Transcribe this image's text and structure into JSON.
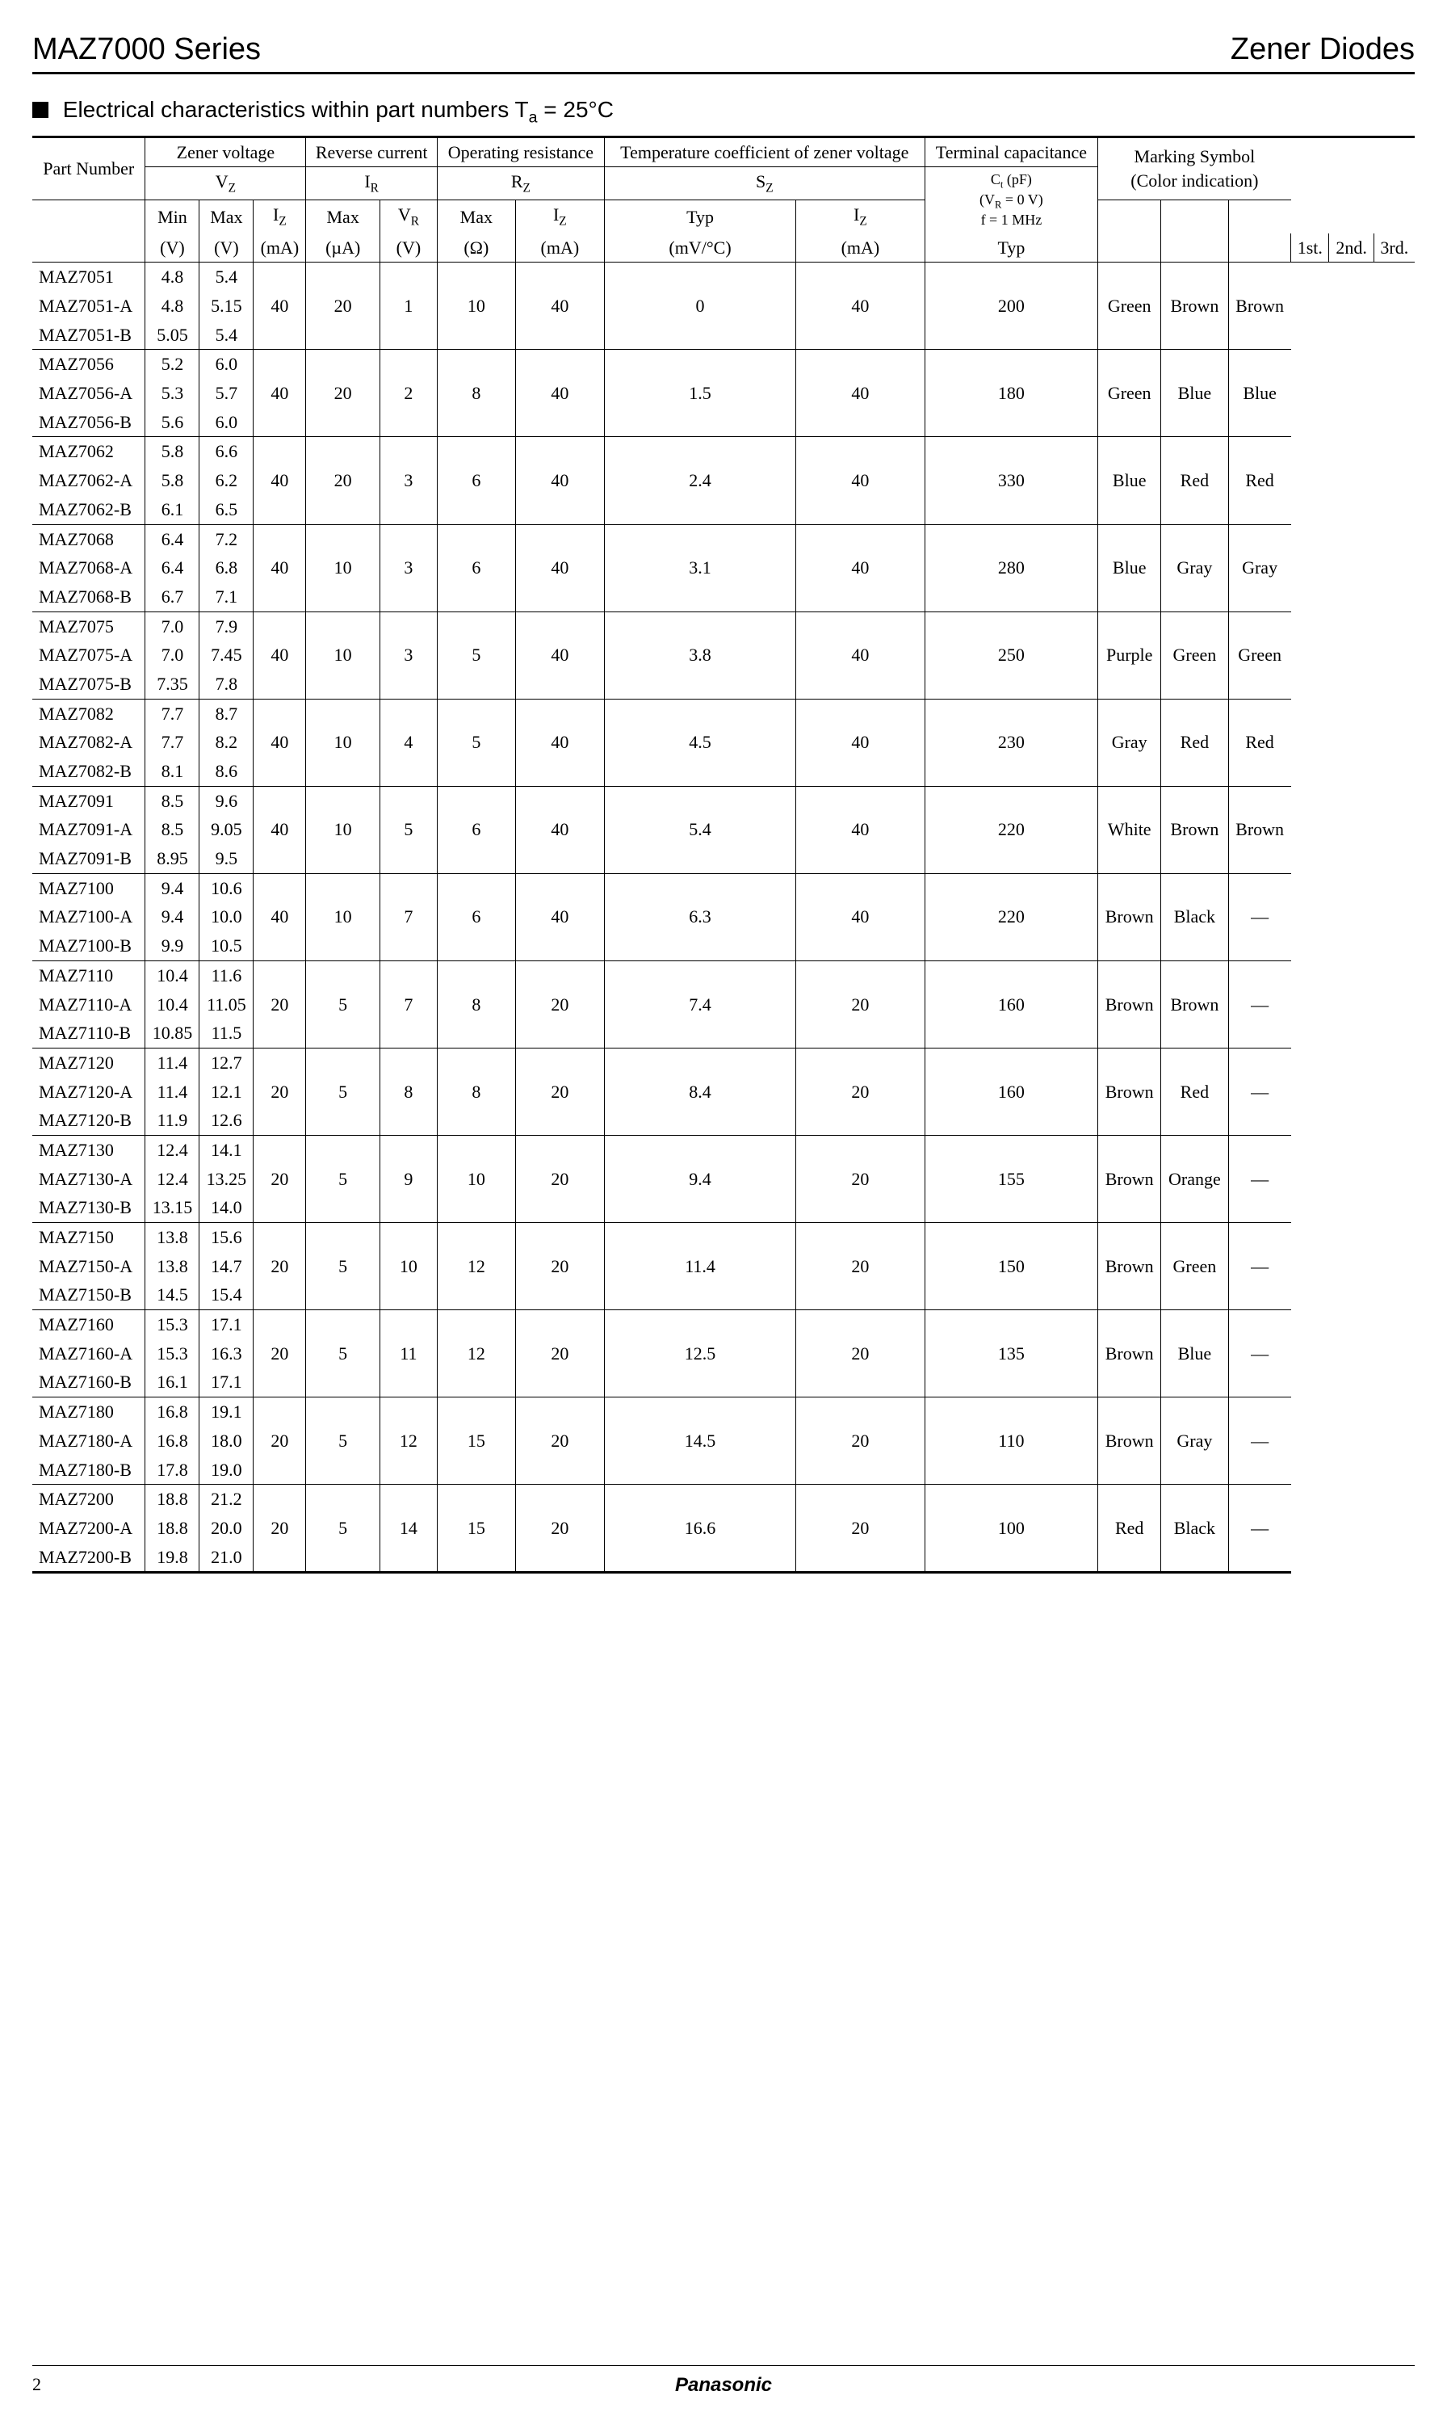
{
  "header": {
    "series": "MAZ7000 Series",
    "category": "Zener Diodes"
  },
  "section_title_prefix": "Electrical characteristics within part numbers  T",
  "section_title_sub": "a",
  "section_title_suffix": " = 25°C",
  "columns": {
    "part_number": "Part Number",
    "zener_voltage": "Zener voltage",
    "reverse_current": "Reverse current",
    "operating_resistance": "Operating resistance",
    "temp_coeff": "Temperature coefficient of zener voltage",
    "terminal_cap": "Terminal capacitance",
    "marking": "Marking Symbol",
    "marking_sub": "(Color indication)",
    "vz": "V",
    "vz_sub": "Z",
    "ir": "I",
    "ir_sub": "R",
    "rz": "R",
    "rz_sub": "Z",
    "sz": "S",
    "sz_sub": "Z",
    "ct": "C",
    "ct_sub": "t",
    "ct_unit": " (pF)",
    "ct_cond1_a": "(V",
    "ct_cond1_sub": "R",
    "ct_cond1_b": " = 0 V)",
    "ct_cond2": "f = 1 MHz",
    "min": "Min",
    "max": "Max",
    "iz": "I",
    "iz_sub": "Z",
    "vr": "V",
    "vr_sub": "R",
    "typ": "Typ",
    "u_v": "(V)",
    "u_ma": "(mA)",
    "u_ua": "(µA)",
    "u_ohm": "(Ω)",
    "u_mvc": "(mV/°C)",
    "m1": "1st.",
    "m2": "2nd.",
    "m3": "3rd."
  },
  "groups": [
    {
      "parts": [
        [
          "MAZ7051",
          "4.8",
          "5.4"
        ],
        [
          "MAZ7051-A",
          "4.8",
          "5.15"
        ],
        [
          "MAZ7051-B",
          "5.05",
          "5.4"
        ]
      ],
      "iz": "40",
      "ir_max": "20",
      "vr": "1",
      "rz_max": "10",
      "rz_iz": "40",
      "sz_typ": "0",
      "sz_iz": "40",
      "ct": "200",
      "m": [
        "Green",
        "Brown",
        "Brown"
      ]
    },
    {
      "parts": [
        [
          "MAZ7056",
          "5.2",
          "6.0"
        ],
        [
          "MAZ7056-A",
          "5.3",
          "5.7"
        ],
        [
          "MAZ7056-B",
          "5.6",
          "6.0"
        ]
      ],
      "iz": "40",
      "ir_max": "20",
      "vr": "2",
      "rz_max": "8",
      "rz_iz": "40",
      "sz_typ": "1.5",
      "sz_iz": "40",
      "ct": "180",
      "m": [
        "Green",
        "Blue",
        "Blue"
      ]
    },
    {
      "parts": [
        [
          "MAZ7062",
          "5.8",
          "6.6"
        ],
        [
          "MAZ7062-A",
          "5.8",
          "6.2"
        ],
        [
          "MAZ7062-B",
          "6.1",
          "6.5"
        ]
      ],
      "iz": "40",
      "ir_max": "20",
      "vr": "3",
      "rz_max": "6",
      "rz_iz": "40",
      "sz_typ": "2.4",
      "sz_iz": "40",
      "ct": "330",
      "m": [
        "Blue",
        "Red",
        "Red"
      ]
    },
    {
      "parts": [
        [
          "MAZ7068",
          "6.4",
          "7.2"
        ],
        [
          "MAZ7068-A",
          "6.4",
          "6.8"
        ],
        [
          "MAZ7068-B",
          "6.7",
          "7.1"
        ]
      ],
      "iz": "40",
      "ir_max": "10",
      "vr": "3",
      "rz_max": "6",
      "rz_iz": "40",
      "sz_typ": "3.1",
      "sz_iz": "40",
      "ct": "280",
      "m": [
        "Blue",
        "Gray",
        "Gray"
      ]
    },
    {
      "parts": [
        [
          "MAZ7075",
          "7.0",
          "7.9"
        ],
        [
          "MAZ7075-A",
          "7.0",
          "7.45"
        ],
        [
          "MAZ7075-B",
          "7.35",
          "7.8"
        ]
      ],
      "iz": "40",
      "ir_max": "10",
      "vr": "3",
      "rz_max": "5",
      "rz_iz": "40",
      "sz_typ": "3.8",
      "sz_iz": "40",
      "ct": "250",
      "m": [
        "Purple",
        "Green",
        "Green"
      ]
    },
    {
      "parts": [
        [
          "MAZ7082",
          "7.7",
          "8.7"
        ],
        [
          "MAZ7082-A",
          "7.7",
          "8.2"
        ],
        [
          "MAZ7082-B",
          "8.1",
          "8.6"
        ]
      ],
      "iz": "40",
      "ir_max": "10",
      "vr": "4",
      "rz_max": "5",
      "rz_iz": "40",
      "sz_typ": "4.5",
      "sz_iz": "40",
      "ct": "230",
      "m": [
        "Gray",
        "Red",
        "Red"
      ]
    },
    {
      "parts": [
        [
          "MAZ7091",
          "8.5",
          "9.6"
        ],
        [
          "MAZ7091-A",
          "8.5",
          "9.05"
        ],
        [
          "MAZ7091-B",
          "8.95",
          "9.5"
        ]
      ],
      "iz": "40",
      "ir_max": "10",
      "vr": "5",
      "rz_max": "6",
      "rz_iz": "40",
      "sz_typ": "5.4",
      "sz_iz": "40",
      "ct": "220",
      "m": [
        "White",
        "Brown",
        "Brown"
      ]
    },
    {
      "parts": [
        [
          "MAZ7100",
          "9.4",
          "10.6"
        ],
        [
          "MAZ7100-A",
          "9.4",
          "10.0"
        ],
        [
          "MAZ7100-B",
          "9.9",
          "10.5"
        ]
      ],
      "iz": "40",
      "ir_max": "10",
      "vr": "7",
      "rz_max": "6",
      "rz_iz": "40",
      "sz_typ": "6.3",
      "sz_iz": "40",
      "ct": "220",
      "m": [
        "Brown",
        "Black",
        "—"
      ]
    },
    {
      "parts": [
        [
          "MAZ7110",
          "10.4",
          "11.6"
        ],
        [
          "MAZ7110-A",
          "10.4",
          "11.05"
        ],
        [
          "MAZ7110-B",
          "10.85",
          "11.5"
        ]
      ],
      "iz": "20",
      "ir_max": "5",
      "vr": "7",
      "rz_max": "8",
      "rz_iz": "20",
      "sz_typ": "7.4",
      "sz_iz": "20",
      "ct": "160",
      "m": [
        "Brown",
        "Brown",
        "—"
      ]
    },
    {
      "parts": [
        [
          "MAZ7120",
          "11.4",
          "12.7"
        ],
        [
          "MAZ7120-A",
          "11.4",
          "12.1"
        ],
        [
          "MAZ7120-B",
          "11.9",
          "12.6"
        ]
      ],
      "iz": "20",
      "ir_max": "5",
      "vr": "8",
      "rz_max": "8",
      "rz_iz": "20",
      "sz_typ": "8.4",
      "sz_iz": "20",
      "ct": "160",
      "m": [
        "Brown",
        "Red",
        "—"
      ]
    },
    {
      "parts": [
        [
          "MAZ7130",
          "12.4",
          "14.1"
        ],
        [
          "MAZ7130-A",
          "12.4",
          "13.25"
        ],
        [
          "MAZ7130-B",
          "13.15",
          "14.0"
        ]
      ],
      "iz": "20",
      "ir_max": "5",
      "vr": "9",
      "rz_max": "10",
      "rz_iz": "20",
      "sz_typ": "9.4",
      "sz_iz": "20",
      "ct": "155",
      "m": [
        "Brown",
        "Orange",
        "—"
      ]
    },
    {
      "parts": [
        [
          "MAZ7150",
          "13.8",
          "15.6"
        ],
        [
          "MAZ7150-A",
          "13.8",
          "14.7"
        ],
        [
          "MAZ7150-B",
          "14.5",
          "15.4"
        ]
      ],
      "iz": "20",
      "ir_max": "5",
      "vr": "10",
      "rz_max": "12",
      "rz_iz": "20",
      "sz_typ": "11.4",
      "sz_iz": "20",
      "ct": "150",
      "m": [
        "Brown",
        "Green",
        "—"
      ]
    },
    {
      "parts": [
        [
          "MAZ7160",
          "15.3",
          "17.1"
        ],
        [
          "MAZ7160-A",
          "15.3",
          "16.3"
        ],
        [
          "MAZ7160-B",
          "16.1",
          "17.1"
        ]
      ],
      "iz": "20",
      "ir_max": "5",
      "vr": "11",
      "rz_max": "12",
      "rz_iz": "20",
      "sz_typ": "12.5",
      "sz_iz": "20",
      "ct": "135",
      "m": [
        "Brown",
        "Blue",
        "—"
      ]
    },
    {
      "parts": [
        [
          "MAZ7180",
          "16.8",
          "19.1"
        ],
        [
          "MAZ7180-A",
          "16.8",
          "18.0"
        ],
        [
          "MAZ7180-B",
          "17.8",
          "19.0"
        ]
      ],
      "iz": "20",
      "ir_max": "5",
      "vr": "12",
      "rz_max": "15",
      "rz_iz": "20",
      "sz_typ": "14.5",
      "sz_iz": "20",
      "ct": "110",
      "m": [
        "Brown",
        "Gray",
        "—"
      ]
    },
    {
      "parts": [
        [
          "MAZ7200",
          "18.8",
          "21.2"
        ],
        [
          "MAZ7200-A",
          "18.8",
          "20.0"
        ],
        [
          "MAZ7200-B",
          "19.8",
          "21.0"
        ]
      ],
      "iz": "20",
      "ir_max": "5",
      "vr": "14",
      "rz_max": "15",
      "rz_iz": "20",
      "sz_typ": "16.6",
      "sz_iz": "20",
      "ct": "100",
      "m": [
        "Red",
        "Black",
        "—"
      ]
    }
  ],
  "footer": {
    "page": "2",
    "brand": "Panasonic"
  }
}
